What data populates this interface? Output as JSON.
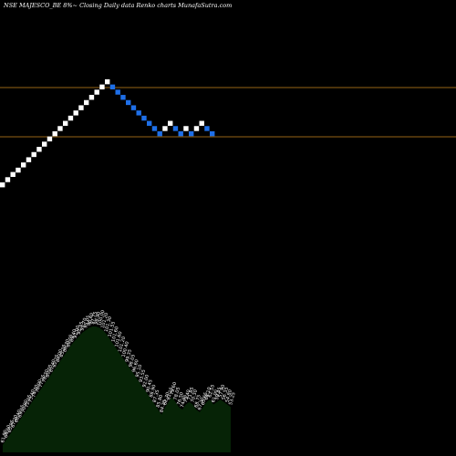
{
  "title": "NSE MAJESCO_BE 8%~ Closing Daily data Renko charts MunafaSutra.com",
  "colors": {
    "background": "#000000",
    "up_brick": "#ffffff",
    "down_brick": "#1e6fe8",
    "reference_line": "#c8841e",
    "volume_fill": "#062306"
  },
  "chart_data": [
    {
      "type": "renko",
      "title": "NSE MAJESCO_BE 8%~ Closing Daily data Renko charts MunafaSutra.com",
      "reference_levels": [
        1,
        0.61
      ],
      "bricks": [
        {
          "dir": "up",
          "level": -1.14
        },
        {
          "dir": "up",
          "level": -1.08
        },
        {
          "dir": "up",
          "level": -1.02
        },
        {
          "dir": "up",
          "level": -0.97
        },
        {
          "dir": "up",
          "level": -0.91
        },
        {
          "dir": "up",
          "level": -0.85
        },
        {
          "dir": "up",
          "level": -0.79
        },
        {
          "dir": "up",
          "level": -0.73
        },
        {
          "dir": "up",
          "level": -0.67
        },
        {
          "dir": "up",
          "level": -0.61
        },
        {
          "dir": "up",
          "level": -0.55
        },
        {
          "dir": "up",
          "level": -0.49
        },
        {
          "dir": "up",
          "level": -0.43
        },
        {
          "dir": "up",
          "level": -0.37
        },
        {
          "dir": "up",
          "level": -0.31
        },
        {
          "dir": "up",
          "level": -0.25
        },
        {
          "dir": "up",
          "level": -0.19
        },
        {
          "dir": "up",
          "level": -0.13
        },
        {
          "dir": "up",
          "level": -0.07
        },
        {
          "dir": "up",
          "level": -0.01
        },
        {
          "dir": "up",
          "level": 0.05
        },
        {
          "dir": "down",
          "level": -0.01
        },
        {
          "dir": "down",
          "level": -0.07
        },
        {
          "dir": "down",
          "level": -0.13
        },
        {
          "dir": "down",
          "level": -0.19
        },
        {
          "dir": "down",
          "level": -0.25
        },
        {
          "dir": "down",
          "level": -0.31
        },
        {
          "dir": "down",
          "level": -0.37
        },
        {
          "dir": "down",
          "level": -0.43
        },
        {
          "dir": "down",
          "level": -0.49
        },
        {
          "dir": "down",
          "level": -0.55
        },
        {
          "dir": "up",
          "level": -0.49
        },
        {
          "dir": "up",
          "level": -0.43
        },
        {
          "dir": "down",
          "level": -0.49
        },
        {
          "dir": "down",
          "level": -0.55
        },
        {
          "dir": "up",
          "level": -0.49
        },
        {
          "dir": "down",
          "level": -0.55
        },
        {
          "dir": "up",
          "level": -0.49
        },
        {
          "dir": "up",
          "level": -0.43
        },
        {
          "dir": "down",
          "level": -0.49
        },
        {
          "dir": "down",
          "level": -0.55
        }
      ],
      "volume_labels": [
        "61.90",
        "64.50",
        "65.95",
        "67.20",
        "68.40",
        "69.55",
        "70.80",
        "72.05",
        "73.40",
        "74.70",
        "76.00",
        "77.35",
        "78.70",
        "80.05",
        "81.40",
        "82.75",
        "84.00",
        "85.35",
        "86.70",
        "88.05",
        "89.40",
        "91.00",
        "92.35",
        "93.70",
        "95.05",
        "96.40",
        "97.75",
        "98.90",
        "100.00",
        "101.20",
        "101.30",
        "101.55",
        "101.60",
        "101.60",
        "101.20",
        "100.40",
        "99.35",
        "98.05",
        "96.60",
        "95.10",
        "93.55",
        "92.00",
        "90.45",
        "88.90",
        "87.35",
        "85.80",
        "84.25",
        "82.70",
        "81.15",
        "79.60",
        "78.05",
        "76.50",
        "74.95",
        "73.40",
        "71.85",
        "70.30",
        "68.75",
        "67.20",
        "65.65",
        "64.10",
        "62.55",
        "61.00",
        "59.45",
        "57.90",
        "56.35",
        "54.80",
        "53.25"
      ],
      "volume_levels": [
        0.06,
        0.1,
        0.14,
        0.18,
        0.22,
        0.26,
        0.3,
        0.34,
        0.38,
        0.42,
        0.46,
        0.5,
        0.54,
        0.58,
        0.62,
        0.66,
        0.7,
        0.74,
        0.78,
        0.82,
        0.86,
        0.89,
        0.92,
        0.95,
        0.97,
        0.99,
        1.0,
        1.0,
        0.99,
        0.97,
        0.94,
        0.9,
        0.86,
        0.82,
        0.78,
        0.74,
        0.7,
        0.66,
        0.62,
        0.58,
        0.54,
        0.5,
        0.46,
        0.42,
        0.38,
        0.34,
        0.3,
        0.36,
        0.4,
        0.44,
        0.4,
        0.36,
        0.34,
        0.38,
        0.4,
        0.38,
        0.34,
        0.32,
        0.36,
        0.4,
        0.42,
        0.38,
        0.4,
        0.42,
        0.4,
        0.38,
        0.36
      ]
    }
  ]
}
